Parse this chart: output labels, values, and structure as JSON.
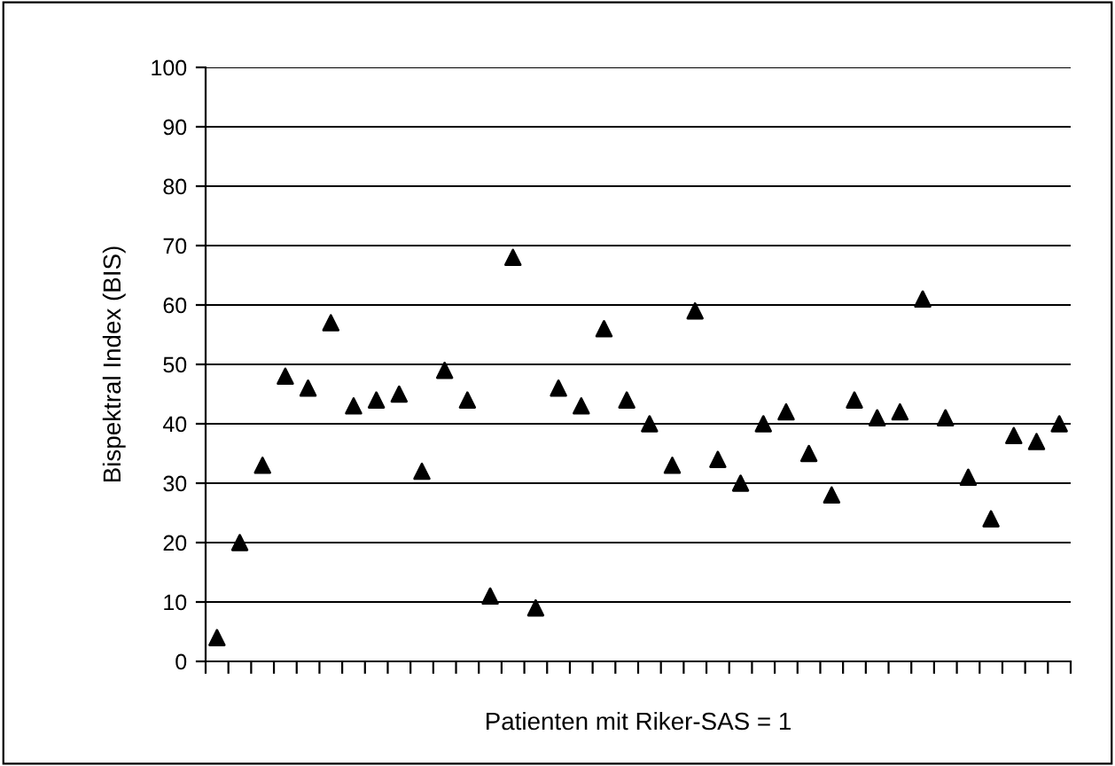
{
  "chart_data": {
    "type": "scatter",
    "xlabel": "Patienten mit Riker-SAS = 1",
    "ylabel": "Bispektral Index (BIS)",
    "categories": [
      null,
      null,
      null,
      null,
      null,
      null,
      null,
      null,
      null,
      null,
      null,
      null,
      null,
      null,
      null,
      null,
      null,
      null,
      null,
      null,
      null,
      null,
      null,
      null,
      null,
      null,
      null,
      null,
      null,
      null,
      null,
      null,
      null,
      null,
      null,
      null,
      null,
      null
    ],
    "series": [
      {
        "color": "#000000",
        "values": [
          4,
          20,
          33,
          48,
          46,
          57,
          43,
          44,
          45,
          32,
          49,
          44,
          11,
          68,
          9,
          46,
          43,
          56,
          44,
          40,
          33,
          59,
          34,
          30,
          40,
          42,
          35,
          28,
          44,
          41,
          42,
          61,
          41,
          31,
          24,
          38,
          37,
          40
        ]
      }
    ],
    "ylim": [
      0,
      100
    ],
    "yticks": [
      0,
      10,
      20,
      30,
      40,
      50,
      60,
      70,
      80,
      90,
      100
    ],
    "grid": "y",
    "marker": "triangle",
    "legend": false
  }
}
